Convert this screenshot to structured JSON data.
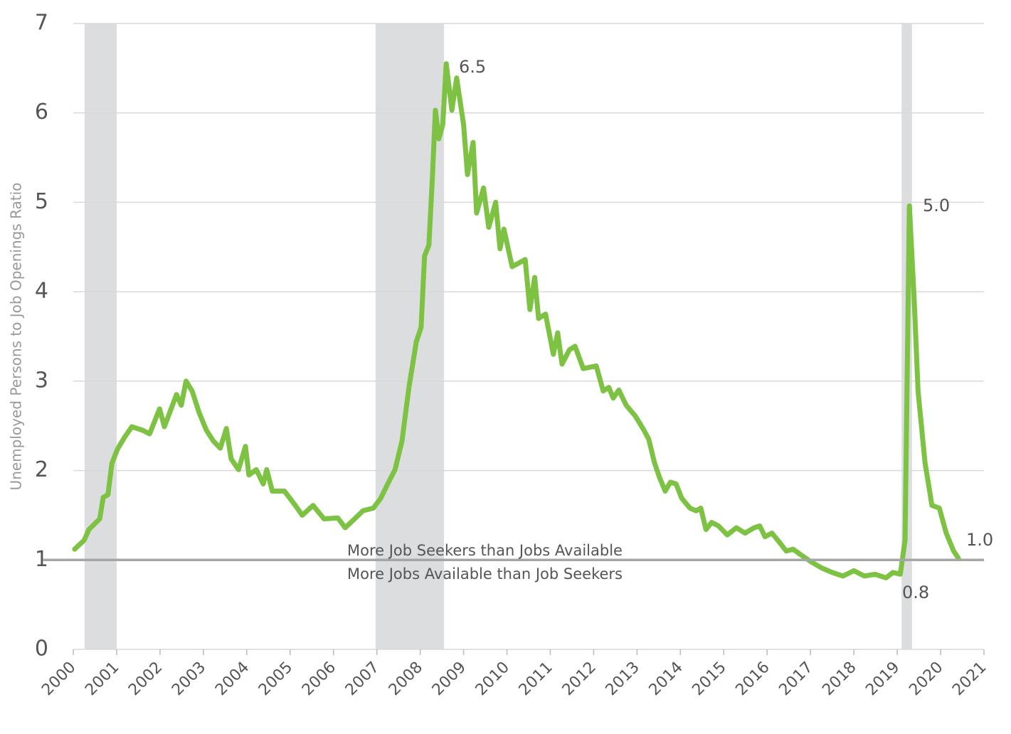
{
  "chart_data": {
    "type": "line",
    "y_label": "Unemployed Persons to Job Openings Ratio",
    "x": [
      2000.03,
      2000.25,
      2000.36,
      2000.61,
      2000.69,
      2000.8,
      2000.89,
      2001.02,
      2001.18,
      2001.35,
      2001.6,
      2001.76,
      2001.99,
      2002.1,
      2002.38,
      2002.49,
      2002.6,
      2002.74,
      2002.9,
      2003.07,
      2003.23,
      2003.39,
      2003.53,
      2003.64,
      2003.81,
      2003.97,
      2004.05,
      2004.22,
      2004.38,
      2004.46,
      2004.59,
      2004.87,
      2005.12,
      2005.28,
      2005.53,
      2005.78,
      2006.1,
      2006.27,
      2006.51,
      2006.68,
      2006.92,
      2007.09,
      2007.25,
      2007.42,
      2007.58,
      2007.74,
      2007.91,
      2008.02,
      2008.1,
      2008.2,
      2008.28,
      2008.35,
      2008.43,
      2008.52,
      2008.6,
      2008.73,
      2008.84,
      2009.0,
      2009.09,
      2009.22,
      2009.3,
      2009.46,
      2009.58,
      2009.74,
      2009.84,
      2009.93,
      2010.12,
      2010.42,
      2010.53,
      2010.64,
      2010.73,
      2010.89,
      2011.07,
      2011.17,
      2011.27,
      2011.44,
      2011.57,
      2011.76,
      2012.06,
      2012.22,
      2012.35,
      2012.45,
      2012.58,
      2012.75,
      2012.96,
      2013.16,
      2013.27,
      2013.4,
      2013.52,
      2013.65,
      2013.77,
      2013.9,
      2014.03,
      2014.22,
      2014.36,
      2014.47,
      2014.59,
      2014.72,
      2014.88,
      2015.08,
      2015.29,
      2015.49,
      2015.7,
      2015.83,
      2015.95,
      2016.11,
      2016.28,
      2016.44,
      2016.6,
      2016.77,
      2017.01,
      2017.26,
      2017.5,
      2017.75,
      2018.0,
      2018.24,
      2018.49,
      2018.74,
      2018.9,
      2019.07,
      2019.18,
      2019.28,
      2019.39,
      2019.48,
      2019.64,
      2019.8,
      2019.97,
      2020.13,
      2020.3,
      2020.41
    ],
    "series": [
      {
        "color": "#7dc242",
        "values": [
          1.12,
          1.22,
          1.34,
          1.46,
          1.7,
          1.73,
          2.08,
          2.24,
          2.37,
          2.49,
          2.45,
          2.41,
          2.69,
          2.49,
          2.85,
          2.73,
          3.0,
          2.89,
          2.65,
          2.45,
          2.33,
          2.25,
          2.47,
          2.13,
          2.01,
          2.27,
          1.95,
          2.01,
          1.85,
          2.01,
          1.77,
          1.77,
          1.61,
          1.5,
          1.61,
          1.46,
          1.47,
          1.36,
          1.47,
          1.55,
          1.58,
          1.69,
          1.85,
          2.01,
          2.33,
          2.93,
          3.44,
          3.6,
          4.4,
          4.52,
          5.27,
          6.03,
          5.71,
          5.87,
          6.55,
          6.03,
          6.39,
          5.87,
          5.31,
          5.67,
          4.88,
          5.16,
          4.72,
          5.0,
          4.48,
          4.7,
          4.28,
          4.36,
          3.8,
          4.16,
          3.7,
          3.75,
          3.3,
          3.54,
          3.19,
          3.35,
          3.39,
          3.14,
          3.17,
          2.89,
          2.93,
          2.81,
          2.9,
          2.73,
          2.61,
          2.45,
          2.35,
          2.09,
          1.92,
          1.77,
          1.87,
          1.85,
          1.69,
          1.58,
          1.55,
          1.58,
          1.34,
          1.42,
          1.38,
          1.28,
          1.36,
          1.3,
          1.36,
          1.38,
          1.26,
          1.3,
          1.2,
          1.1,
          1.12,
          1.06,
          0.98,
          0.91,
          0.86,
          0.82,
          0.88,
          0.82,
          0.84,
          0.8,
          0.86,
          0.84,
          1.22,
          4.96,
          3.92,
          2.89,
          2.09,
          1.61,
          1.58,
          1.3,
          1.1,
          1.02
        ]
      }
    ],
    "recessions": [
      [
        2000.26,
        2001.0
      ],
      [
        2006.97,
        2008.55
      ],
      [
        2019.1,
        2019.34
      ]
    ],
    "reference_line": 1,
    "annotations": [
      "6.5",
      "5.0",
      "1.0",
      "0.8",
      "More Job Seekers than Jobs Available",
      "More Jobs Available than Job Seekers"
    ],
    "xlim": [
      2000,
      2021
    ],
    "xticks": [
      2000,
      2001,
      2002,
      2003,
      2004,
      2005,
      2006,
      2007,
      2008,
      2009,
      2010,
      2011,
      2012,
      2013,
      2014,
      2015,
      2016,
      2017,
      2018,
      2019,
      2020,
      2021
    ],
    "ylim": [
      0,
      7
    ],
    "yticks": [
      0,
      1,
      2,
      3,
      4,
      5,
      6,
      7
    ],
    "grid": true
  }
}
